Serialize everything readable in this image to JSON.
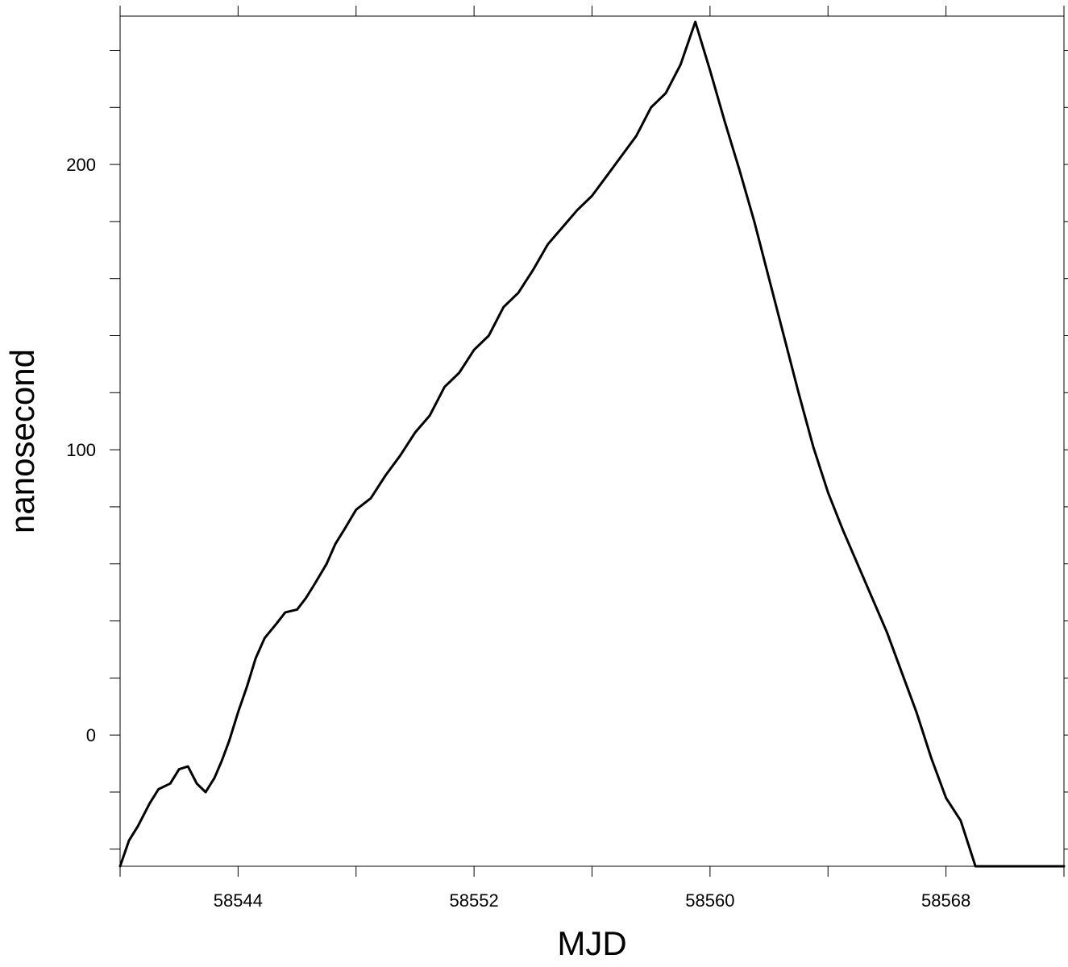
{
  "chart_data": {
    "type": "line",
    "title": "",
    "xlabel": "MJD",
    "ylabel": "nanosecond",
    "xlim": [
      58540,
      58572
    ],
    "ylim": [
      -46,
      252
    ],
    "x_ticks": [
      58544,
      58552,
      58560,
      58568
    ],
    "x_minor_ticks": [
      58540,
      58548,
      58556,
      58564,
      58572
    ],
    "y_ticks": [
      0,
      100,
      200
    ],
    "y_minor_ticks": [
      -40,
      -20,
      20,
      40,
      60,
      80,
      120,
      140,
      160,
      180,
      220,
      240
    ],
    "grid": false,
    "legend": "none",
    "line_color": "#000000",
    "series": [
      {
        "x": [
          58540.0,
          58540.3,
          58540.6,
          58541.0,
          58541.3,
          58541.7,
          58542.0,
          58542.3,
          58542.6,
          58542.9,
          58543.2,
          58543.45,
          58543.7,
          58544.0,
          58544.3,
          58544.6,
          58544.9,
          58545.3,
          58545.6,
          58546.0,
          58546.3,
          58546.6,
          58547.0,
          58547.3,
          58547.6,
          58548.0,
          58548.5,
          58549.0,
          58549.5,
          58550.0,
          58550.5,
          58551.0,
          58551.5,
          58552.0,
          58552.5,
          58553.0,
          58553.5,
          58554.0,
          58554.5,
          58555.0,
          58555.5,
          58556.0,
          58556.5,
          58557.0,
          58557.5,
          58558.0,
          58558.5,
          58559.0,
          58559.5,
          58560.0,
          58560.5,
          58561.0,
          58561.5,
          58562.0,
          58562.5,
          58563.0,
          58563.5,
          58564.0,
          58564.5,
          58565.0,
          58565.5,
          58566.0,
          58566.5,
          58567.0,
          58567.5,
          58568.0,
          58568.5,
          58569.0,
          58569.5,
          58570.0,
          58570.5,
          58571.0,
          58571.5,
          58572.0
        ],
        "y": [
          -46,
          -37,
          -32,
          -24,
          -19,
          -17,
          -12,
          -11,
          -17,
          -20,
          -15,
          -9,
          -2,
          8,
          17,
          27,
          34,
          39,
          43,
          44,
          48,
          53,
          60,
          67,
          72,
          79,
          83,
          91,
          98,
          106,
          112,
          122,
          127,
          135,
          140,
          150,
          155,
          163,
          172,
          178,
          184,
          189,
          196,
          203,
          210,
          220,
          225,
          235,
          250,
          233,
          215,
          198,
          180,
          160,
          140,
          120,
          101,
          85,
          72,
          60,
          48,
          36,
          22,
          8,
          -8,
          -22,
          -30,
          -46,
          -46,
          -46,
          -46,
          -46,
          -46,
          -46
        ]
      }
    ]
  }
}
